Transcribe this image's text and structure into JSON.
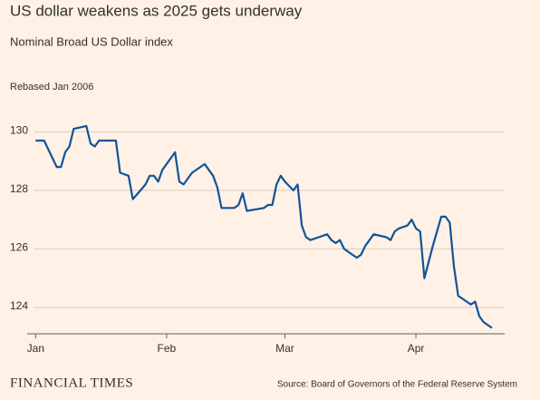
{
  "chart_data": {
    "type": "line",
    "title": "US dollar weakens as 2025 gets underway",
    "subtitle": "Nominal Broad US Dollar index",
    "note": "Rebased Jan 2006",
    "source": "Source: Board of Governors of the Federal Reserve System",
    "brand": "FINANCIAL TIMES",
    "color": "#0f5499",
    "x": [
      0,
      2,
      5,
      6,
      7,
      8,
      9,
      12,
      13,
      14,
      15,
      17,
      19,
      20,
      22,
      23,
      26,
      27,
      28,
      29,
      30,
      33,
      34,
      35,
      37,
      39,
      40,
      41,
      42,
      43,
      44,
      47,
      48,
      49,
      50,
      54,
      55,
      56,
      57,
      58,
      59,
      61,
      62,
      63,
      64,
      65,
      67,
      69,
      70,
      71,
      72,
      73,
      75,
      76,
      77,
      78,
      79,
      80,
      83,
      84,
      85,
      86,
      88,
      89,
      90,
      91,
      92,
      94,
      96,
      97,
      98,
      99,
      100,
      102,
      103,
      104,
      105,
      106,
      108
    ],
    "values": [
      129.7,
      129.7,
      128.8,
      128.8,
      129.3,
      129.5,
      130.1,
      130.2,
      129.6,
      129.5,
      129.7,
      129.7,
      129.7,
      128.6,
      128.5,
      127.7,
      128.2,
      128.5,
      128.5,
      128.3,
      128.7,
      129.3,
      128.3,
      128.2,
      128.6,
      128.8,
      128.9,
      128.7,
      128.5,
      128.1,
      127.4,
      127.4,
      127.5,
      127.9,
      127.3,
      127.4,
      127.5,
      127.5,
      128.2,
      128.5,
      128.3,
      128.0,
      128.2,
      126.8,
      126.4,
      126.3,
      126.4,
      126.5,
      126.3,
      126.2,
      126.3,
      126.0,
      125.8,
      125.7,
      125.8,
      126.1,
      126.3,
      126.5,
      126.4,
      126.3,
      126.6,
      126.7,
      126.8,
      127.0,
      126.7,
      126.6,
      125.0,
      126.1,
      127.1,
      127.1,
      126.9,
      125.4,
      124.4,
      124.2,
      124.1,
      124.2,
      123.7,
      123.5,
      123.3
    ],
    "xlim": [
      -2,
      111
    ],
    "xticks": [
      {
        "value": 0,
        "label": "Jan"
      },
      {
        "value": 31,
        "label": "Feb"
      },
      {
        "value": 59,
        "label": "Mar"
      },
      {
        "value": 90,
        "label": "Apr"
      }
    ],
    "ylim": [
      123.1,
      130.6
    ],
    "yticks": [
      124,
      126,
      128,
      130
    ],
    "grid": true
  }
}
